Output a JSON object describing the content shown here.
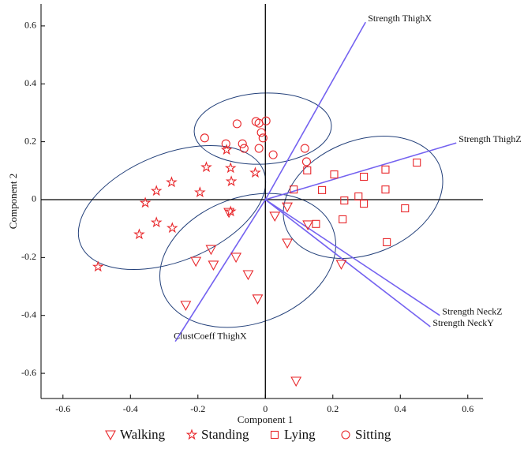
{
  "chart_data": {
    "type": "scatter",
    "x_label": "Component 1",
    "y_label": "Component 2",
    "xlim": [
      -0.665,
      0.645
    ],
    "ylim": [
      -0.687,
      0.676
    ],
    "xticks": [
      -0.6,
      -0.4,
      -0.2,
      0,
      0.2,
      0.4,
      0.6
    ],
    "yticks": [
      -0.6,
      -0.4,
      -0.2,
      0,
      0.2,
      0.4,
      0.6
    ],
    "vector_color": "#7462f0",
    "vectors": [
      {
        "name": "Strength ThighX",
        "x": 0.297,
        "y": 0.613
      },
      {
        "name": "Strength ThighZ",
        "x": 0.566,
        "y": 0.196
      },
      {
        "name": "Strength NeckZ",
        "x": 0.517,
        "y": -0.4
      },
      {
        "name": "Strength NeckY",
        "x": 0.489,
        "y": -0.439
      },
      {
        "name": "ClustCoeff ThighX",
        "x": -0.267,
        "y": -0.49
      }
    ],
    "series": [
      {
        "name": "Walking",
        "color": "#e8262a",
        "marker": "triangle-down",
        "x": [
          0.065,
          0.028,
          0.126,
          0.065,
          -0.161,
          -0.206,
          -0.154,
          -0.087,
          -0.051,
          -0.023,
          -0.236,
          0.225,
          0.091,
          -0.108
        ],
        "y": [
          -0.025,
          -0.057,
          -0.087,
          -0.15,
          -0.172,
          -0.213,
          -0.226,
          -0.199,
          -0.259,
          -0.343,
          -0.365,
          -0.223,
          -0.627,
          -0.044
        ]
      },
      {
        "name": "Standing",
        "color": "#e8262a",
        "marker": "star",
        "x": [
          -0.115,
          -0.03,
          -0.175,
          -0.103,
          -0.101,
          -0.194,
          -0.278,
          -0.323,
          -0.356,
          -0.323,
          -0.276,
          -0.374,
          -0.103,
          -0.496
        ],
        "y": [
          0.172,
          0.093,
          0.112,
          0.109,
          0.063,
          0.025,
          0.06,
          0.03,
          -0.011,
          -0.079,
          -0.098,
          -0.12,
          -0.041,
          -0.232
        ]
      },
      {
        "name": "Lying",
        "color": "#e8262a",
        "marker": "square",
        "x": [
          0.124,
          0.204,
          0.292,
          0.356,
          0.449,
          0.084,
          0.168,
          0.276,
          0.234,
          0.292,
          0.356,
          0.414,
          0.229,
          0.15,
          0.36
        ],
        "y": [
          0.101,
          0.087,
          0.079,
          0.104,
          0.128,
          0.035,
          0.033,
          0.011,
          -0.003,
          -0.014,
          0.035,
          -0.03,
          -0.068,
          -0.084,
          -0.147
        ]
      },
      {
        "name": "Sitting",
        "color": "#e8262a",
        "marker": "circle",
        "x": [
          -0.084,
          -0.028,
          -0.019,
          0.002,
          -0.012,
          -0.007,
          -0.18,
          -0.068,
          -0.063,
          -0.117,
          -0.019,
          0.023,
          0.117,
          0.122
        ],
        "y": [
          0.262,
          0.27,
          0.264,
          0.272,
          0.232,
          0.213,
          0.213,
          0.193,
          0.177,
          0.193,
          0.177,
          0.155,
          0.177,
          0.131
        ]
      }
    ]
  }
}
